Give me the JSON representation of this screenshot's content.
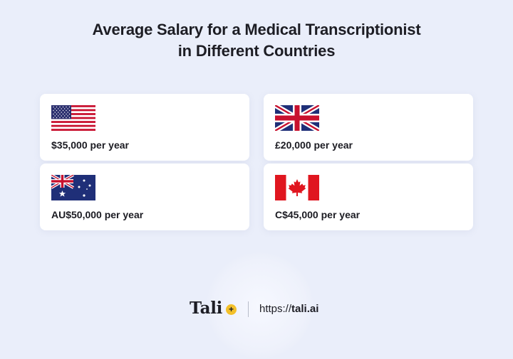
{
  "title": {
    "line1": "Average Salary for a Medical Transcriptionist",
    "line2": "in Different Countries"
  },
  "cards": {
    "us": {
      "flag": "us-flag-icon",
      "salary": "$35,000 per year"
    },
    "uk": {
      "flag": "uk-flag-icon",
      "salary": "£20,000 per year"
    },
    "au": {
      "flag": "australia-flag-icon",
      "salary": "AU$50,000 per year"
    },
    "ca": {
      "flag": "canada-flag-icon",
      "salary": "C$45,000 per year"
    }
  },
  "footer": {
    "logo": "Tali",
    "logo_badge": "+",
    "url_prefix": "https://",
    "url_domain": "tali.ai"
  },
  "colors": {
    "background": "#eaeefa",
    "card": "#ffffff",
    "logo_accent": "#f3c02a"
  }
}
